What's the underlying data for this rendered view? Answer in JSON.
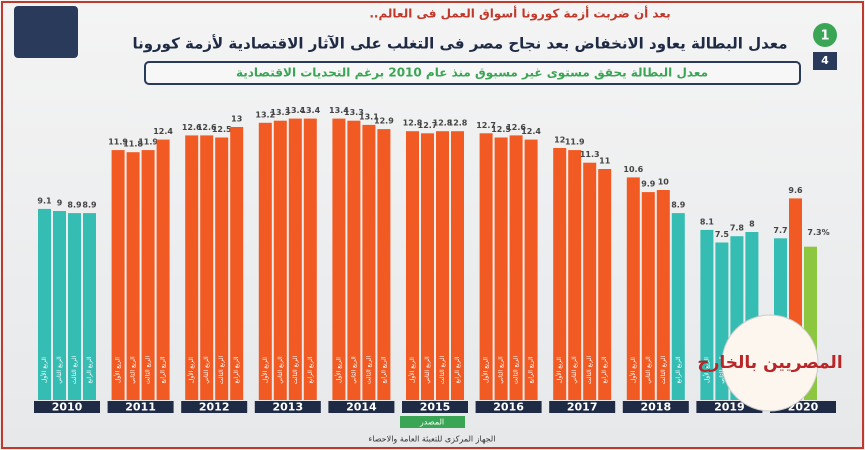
{
  "chart_data": {
    "type": "grouped-bar",
    "kicker": "بعد أن ضربت أزمة كورونا أسواق العمل فى العالم..",
    "title": "معدل البطالة يعاود الانخفاض بعد نجاح مصر فى التغلب على الآثار الاقتصادية لأزمة كورونا",
    "subtitle": "معدل البطالة يحقق مستوى غير مسبوق منذ عام 2010 برغم التحديات الاقتصادية",
    "page_number": "1",
    "page_total": "4",
    "source_label": "المصدر",
    "source": "الجهاز المركزى للتعبئة العامة والاحصاء",
    "watermark": "المصريين بالخارج",
    "quarter_labels": [
      "الربع الأول",
      "الربع الثاني",
      "الربع الثالث",
      "الربع الرابع"
    ],
    "groups": [
      {
        "year": "2010",
        "values": [
          9.1,
          9,
          8.9,
          8.9
        ],
        "colors": [
          "#35bdb4",
          "#35bdb4",
          "#35bdb4",
          "#35bdb4"
        ]
      },
      {
        "year": "2011",
        "values": [
          11.9,
          11.8,
          11.9,
          12.4
        ],
        "colors": [
          "#f15a22",
          "#f15a22",
          "#f15a22",
          "#f15a22"
        ]
      },
      {
        "year": "2012",
        "values": [
          12.6,
          12.6,
          12.5,
          13
        ],
        "colors": [
          "#f15a22",
          "#f15a22",
          "#f15a22",
          "#f15a22"
        ]
      },
      {
        "year": "2013",
        "values": [
          13.2,
          13.3,
          13.4,
          13.4
        ],
        "colors": [
          "#f15a22",
          "#f15a22",
          "#f15a22",
          "#f15a22"
        ]
      },
      {
        "year": "2014",
        "values": [
          13.4,
          13.3,
          13.1,
          12.9
        ],
        "colors": [
          "#f15a22",
          "#f15a22",
          "#f15a22",
          "#f15a22"
        ]
      },
      {
        "year": "2015",
        "values": [
          12.8,
          12.7,
          12.8,
          12.8
        ],
        "colors": [
          "#f15a22",
          "#f15a22",
          "#f15a22",
          "#f15a22"
        ]
      },
      {
        "year": "2016",
        "values": [
          12.7,
          12.5,
          12.6,
          12.4
        ],
        "colors": [
          "#f15a22",
          "#f15a22",
          "#f15a22",
          "#f15a22"
        ]
      },
      {
        "year": "2017",
        "values": [
          12,
          11.9,
          11.3,
          11
        ],
        "colors": [
          "#f15a22",
          "#f15a22",
          "#f15a22",
          "#f15a22"
        ]
      },
      {
        "year": "2018",
        "values": [
          10.6,
          9.9,
          10,
          8.9
        ],
        "colors": [
          "#f15a22",
          "#f15a22",
          "#f15a22",
          "#35bdb4"
        ]
      },
      {
        "year": "2019",
        "values": [
          8.1,
          7.5,
          7.8,
          8
        ],
        "colors": [
          "#35bdb4",
          "#35bdb4",
          "#35bdb4",
          "#35bdb4"
        ]
      },
      {
        "year": "2020",
        "values": [
          7.7,
          9.6,
          7.3
        ],
        "value_labels": [
          "7.7",
          "9.6",
          "7.3%"
        ],
        "colors": [
          "#35bdb4",
          "#f15a22",
          "#8dc63f"
        ]
      }
    ]
  }
}
